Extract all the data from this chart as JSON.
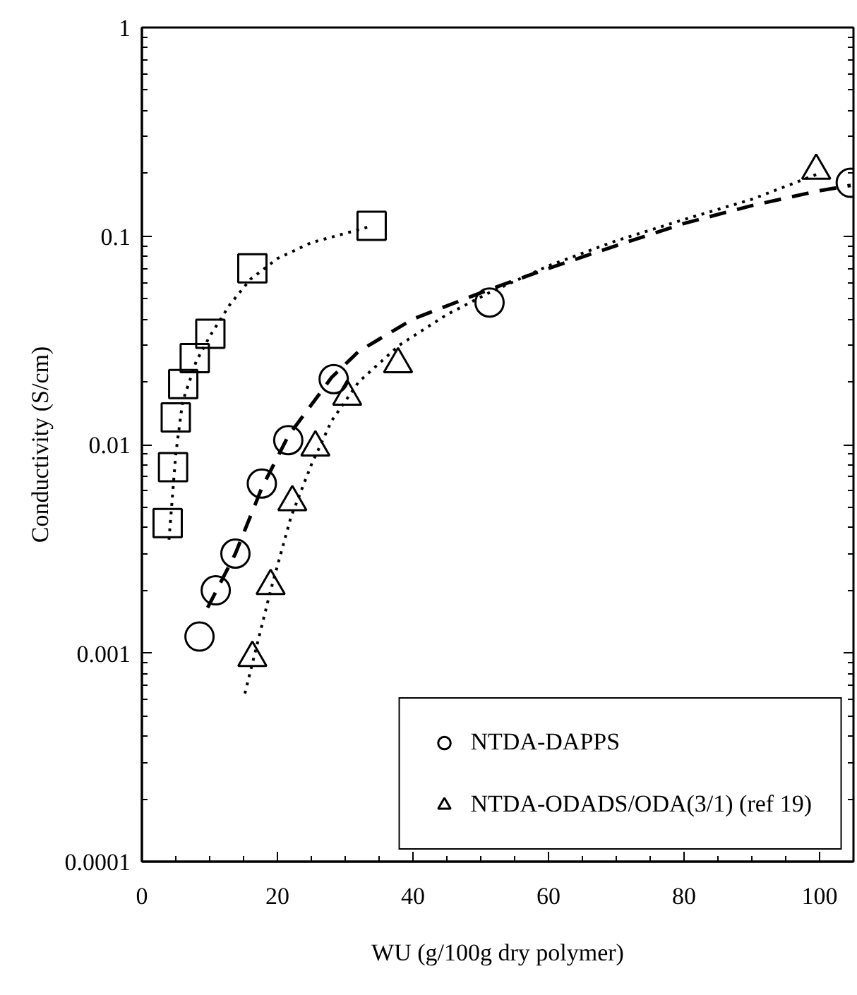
{
  "chart_data": {
    "type": "scatter",
    "xlabel": "WU (g/100g dry polymer)",
    "ylabel": "Conductivity (S/cm)",
    "log": "y",
    "xlim": [
      0,
      105
    ],
    "xticks": [
      0,
      20,
      40,
      60,
      80,
      100
    ],
    "ylim": [
      0.0001,
      1
    ],
    "yticks": [
      0.0001,
      0.001,
      0.01,
      0.1,
      1
    ],
    "grid": false,
    "legend": "bottom right",
    "series": [
      {
        "name": "NTDA-DAPPS",
        "marker": "circle",
        "color": "#000000",
        "x": [
          8.5,
          10.9,
          13.8,
          17.7,
          21.6,
          28.3,
          51.3,
          104.6
        ],
        "values": [
          0.0012,
          0.002,
          0.003,
          0.0065,
          0.0105,
          0.0206,
          0.048,
          0.18
        ]
      },
      {
        "name": "NTDA-ODADS/ODA(3/1) (ref 19)",
        "marker": "triangle",
        "color": "#000000",
        "x": [
          16.3,
          19.0,
          22.2,
          25.6,
          30.3,
          37.8,
          99.5
        ],
        "values": [
          0.00095,
          0.0021,
          0.0053,
          0.0097,
          0.017,
          0.0243,
          0.206
        ]
      },
      {
        "marker": "square",
        "color": "#000000",
        "x": [
          3.8,
          4.6,
          5.0,
          6.1,
          7.8,
          10.1,
          16.3,
          33.9
        ],
        "values": [
          0.0042,
          0.0078,
          0.0135,
          0.0195,
          0.026,
          0.034,
          0.07,
          0.112
        ]
      },
      {
        "type": "line",
        "line_style": "dashed",
        "color": "#000000",
        "x": [
          9.7,
          13.8,
          17.7,
          21.6,
          28,
          32,
          40,
          51,
          60,
          70,
          80,
          90,
          100,
          104.6
        ],
        "values": [
          0.00165,
          0.003,
          0.0062,
          0.011,
          0.021,
          0.028,
          0.04,
          0.055,
          0.07,
          0.09,
          0.115,
          0.14,
          0.165,
          0.175
        ]
      },
      {
        "type": "line",
        "line_style": "dotted",
        "color": "#000000",
        "x": [
          15.2,
          17,
          19,
          22,
          25,
          28,
          32,
          38,
          45,
          51,
          60,
          70,
          80,
          90,
          100
        ],
        "values": [
          0.00064,
          0.0011,
          0.002,
          0.0045,
          0.008,
          0.013,
          0.02,
          0.03,
          0.042,
          0.053,
          0.072,
          0.095,
          0.12,
          0.15,
          0.2
        ]
      },
      {
        "type": "line",
        "line_style": "dotted",
        "color": "#000000",
        "x": [
          4,
          5,
          6,
          8,
          10,
          13,
          16,
          20,
          25,
          30,
          34
        ],
        "values": [
          0.0035,
          0.009,
          0.016,
          0.025,
          0.033,
          0.047,
          0.062,
          0.078,
          0.093,
          0.103,
          0.112
        ]
      }
    ]
  }
}
